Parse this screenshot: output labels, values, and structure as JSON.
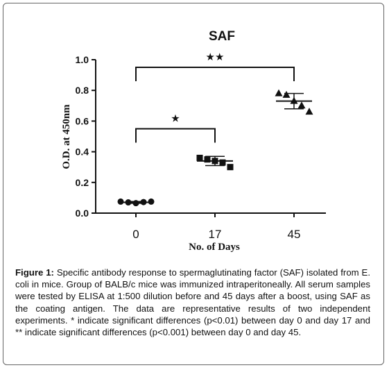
{
  "chart_data": {
    "type": "scatter",
    "title": "SAF",
    "xlabel": "No. of Days",
    "ylabel": "O.D. at 450nm",
    "categories": [
      "0",
      "17",
      "45"
    ],
    "ylim": [
      0.0,
      1.0
    ],
    "yticks": [
      "0.0",
      "0.2",
      "0.4",
      "0.6",
      "0.8",
      "1.0"
    ],
    "groups": [
      {
        "category": "0",
        "marker": "circle",
        "mean": 0.07,
        "sd": 0.006,
        "points": [
          0.075,
          0.07,
          0.065,
          0.072,
          0.075
        ]
      },
      {
        "category": "17",
        "marker": "square",
        "mean": 0.34,
        "sd": 0.03,
        "points": [
          0.36,
          0.35,
          0.34,
          0.33,
          0.3
        ]
      },
      {
        "category": "45",
        "marker": "triangle",
        "mean": 0.73,
        "sd": 0.05,
        "points": [
          0.78,
          0.77,
          0.73,
          0.7,
          0.66
        ]
      }
    ],
    "significance": [
      {
        "from": "0",
        "to": "17",
        "label": "★",
        "y": 0.55
      },
      {
        "from": "0",
        "to": "45",
        "label": "★★",
        "y": 0.95
      }
    ],
    "grid": false
  },
  "caption": {
    "label": "Figure 1:",
    "text": "Specific antibody response to spermaglutinating factor (SAF) isolated from E. coli in mice. Group of BALB/c mice was immunized intraperitoneally. All serum samples were tested by ELISA at 1:500 dilution before and 45 days after a boost, using SAF as the coating antigen. The data are representative results of two independent experiments. * indicate significant differences (p<0.01) between day 0 and day 17 and ** indicate significant differences (p<0.001) between day 0 and day 45."
  },
  "colors": {
    "ink": "#111111",
    "frame": "#666666"
  }
}
